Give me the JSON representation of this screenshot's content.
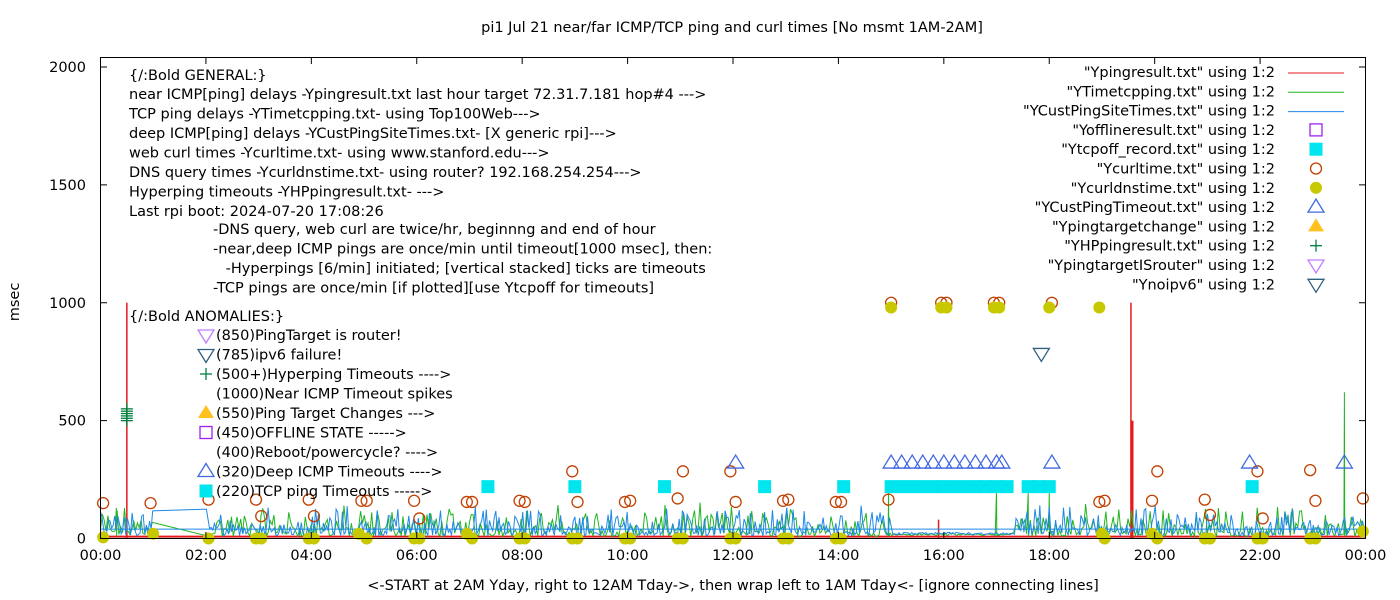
{
  "chart_data": {
    "type": "line",
    "title": "pi1 Jul 21  near/far ICMP/TCP ping and curl times [No msmt 1AM-2AM]",
    "xlabel": "<-START at 2AM Yday, right to 12AM Tday->, then wrap left to 1AM Tday<- [ignore connecting lines]",
    "ylabel": "msec",
    "xlim": [
      0,
      24
    ],
    "ylim": [
      0,
      2000
    ],
    "x_ticks": [
      "00:00",
      "02:00",
      "04:00",
      "06:00",
      "08:00",
      "10:00",
      "12:00",
      "14:00",
      "16:00",
      "18:00",
      "20:00",
      "22:00",
      "00:00"
    ],
    "y_ticks": [
      "0",
      "500",
      "1000",
      "1500",
      "2000"
    ],
    "y_tick_values": [
      0,
      500,
      1000,
      1500,
      2000
    ],
    "grid": false,
    "legend_position": "top-right",
    "legend": [
      {
        "label": "\"Ypingresult.txt\" using 1:2",
        "style": "line",
        "color": "#e41a1c"
      },
      {
        "label": "\"YTimetcpping.txt\" using 1:2",
        "style": "line",
        "color": "#1fb51f"
      },
      {
        "label": "\"YCustPingSiteTimes.txt\" using 1:2",
        "style": "line",
        "color": "#1e88e5"
      },
      {
        "label": "\"Yofflineresult.txt\" using 1:2",
        "style": "open-square",
        "color": "#a020f0"
      },
      {
        "label": "\"Ytcpoff_record.txt\" using 1:2",
        "style": "filled-square",
        "color": "#00e5ee"
      },
      {
        "label": "\"Ycurltime.txt\" using 1:2",
        "style": "open-circle",
        "color": "#c04000"
      },
      {
        "label": "\"Ycurldnstime.txt\" using 1:2",
        "style": "filled-circle",
        "color": "#c8c800"
      },
      {
        "label": "\"YCustPingTimeout.txt\" using 1:2",
        "style": "open-triangle-up",
        "color": "#4169e1"
      },
      {
        "label": "\"Ypingtargetchange\" using 1:2",
        "style": "filled-triangle-up",
        "color": "#ffc020"
      },
      {
        "label": "\"YHPpingresult.txt\" using 1:2",
        "style": "plus",
        "color": "#008040"
      },
      {
        "label": "\"YpingtargetISrouter\" using 1:2",
        "style": "open-triangle-down",
        "color": "#c080ff"
      },
      {
        "label": "\"Ynoipv6\" using 1:2",
        "style": "open-triangle-down",
        "color": "#306080"
      }
    ],
    "annotations": {
      "general_header": "{/:Bold GENERAL:}",
      "general_lines": [
        "near ICMP[ping] delays -Ypingresult.txt last hour target 72.31.7.181 hop#4 --->",
        "TCP ping delays -YTimetcpping.txt- using Top100Web--->",
        "deep ICMP[ping] delays -YCustPingSiteTimes.txt- [X generic rpi]--->",
        "web curl times -Ycurltime.txt- using www.stanford.edu--->",
        "DNS query times -Ycurldnstime.txt- using router? 192.168.254.254--->",
        "Hyperping timeouts -YHPpingresult.txt- --->",
        "Last rpi boot: 2024-07-20 17:08:26"
      ],
      "notes": [
        "-DNS query, web curl are twice/hr, beginnng and end of hour",
        "-near,deep ICMP pings are once/min until timeout[1000 msec], then:",
        " -Hyperpings [6/min] initiated; [vertical stacked] ticks are timeouts",
        "-TCP pings are once/min [if plotted][use Ytcpoff for timeouts]"
      ],
      "anomalies_header": "{/:Bold ANOMALIES:}",
      "anomalies": [
        {
          "marker": "open-triangle-down",
          "color": "#c080ff",
          "text": "(850)PingTarget is router!"
        },
        {
          "marker": "open-triangle-down",
          "color": "#306080",
          "text": "(785)ipv6 failure!"
        },
        {
          "marker": "plus",
          "color": "#008040",
          "text": "(500+)Hyperping Timeouts ---->"
        },
        {
          "marker": "none",
          "color": "#000000",
          "text": "(1000)Near ICMP Timeout spikes"
        },
        {
          "marker": "filled-triangle-up",
          "color": "#ffc020",
          "text": "(550)Ping Target Changes --->"
        },
        {
          "marker": "open-square",
          "color": "#a020f0",
          "text": "(450)OFFLINE STATE ----->"
        },
        {
          "marker": "none",
          "color": "#000000",
          "text": "(400)Reboot/powercycle? ---->"
        },
        {
          "marker": "open-triangle-up",
          "color": "#4169e1",
          "text": "(320)Deep ICMP Timeouts ---->"
        },
        {
          "marker": "filled-square",
          "color": "#00e5ee",
          "text": "(220)TCP ping Timeouts ----->"
        }
      ]
    },
    "series": [
      {
        "name": "Ypingresult.txt",
        "type": "line",
        "color": "#e41a1c",
        "spikes": [
          {
            "x": 0.5,
            "y": 1000
          },
          {
            "x": 19.55,
            "y": 1000
          },
          {
            "x": 19.57,
            "y": 500
          },
          {
            "x": 15.9,
            "y": 80
          }
        ],
        "baseline": 10
      },
      {
        "name": "YTimetcpping.txt",
        "type": "line",
        "color": "#1fb51f",
        "spikes": [
          {
            "x": 23.6,
            "y": 620
          },
          {
            "x": 17.0,
            "y": 200
          },
          {
            "x": 17.6,
            "y": 200
          },
          {
            "x": 18.0,
            "y": 200
          },
          {
            "x": 14.95,
            "y": 200
          },
          {
            "x": 0.3,
            "y": 130
          }
        ],
        "baseline": 30
      },
      {
        "name": "YCustPingSiteTimes.txt",
        "type": "line",
        "color": "#1e88e5",
        "baseline": 40
      },
      {
        "name": "Ytcpoff_record.txt",
        "type": "filled-square",
        "color": "#00e5ee",
        "points": [
          [
            7.35,
            220
          ],
          [
            9.0,
            220
          ],
          [
            10.7,
            220
          ],
          [
            12.6,
            220
          ],
          [
            14.1,
            220
          ],
          [
            15.0,
            220
          ],
          [
            15.2,
            220
          ],
          [
            15.4,
            220
          ],
          [
            15.6,
            220
          ],
          [
            15.8,
            220
          ],
          [
            16.0,
            220
          ],
          [
            16.2,
            220
          ],
          [
            16.4,
            220
          ],
          [
            16.6,
            220
          ],
          [
            16.8,
            220
          ],
          [
            17.0,
            220
          ],
          [
            17.2,
            220
          ],
          [
            17.6,
            220
          ],
          [
            17.8,
            220
          ],
          [
            18.0,
            220
          ],
          [
            21.85,
            220
          ]
        ]
      },
      {
        "name": "Ycurltime.txt",
        "type": "open-circle",
        "color": "#c04000",
        "points": [
          [
            0.05,
            150
          ],
          [
            0.95,
            150
          ],
          [
            2.05,
            165
          ],
          [
            2.95,
            165
          ],
          [
            3.05,
            95
          ],
          [
            3.95,
            165
          ],
          [
            4.05,
            95
          ],
          [
            4.95,
            160
          ],
          [
            5.05,
            160
          ],
          [
            5.95,
            160
          ],
          [
            6.05,
            85
          ],
          [
            6.95,
            155
          ],
          [
            7.05,
            155
          ],
          [
            7.95,
            160
          ],
          [
            8.05,
            155
          ],
          [
            8.95,
            285
          ],
          [
            9.05,
            155
          ],
          [
            9.95,
            155
          ],
          [
            10.05,
            160
          ],
          [
            10.95,
            170
          ],
          [
            11.05,
            285
          ],
          [
            11.95,
            285
          ],
          [
            12.05,
            155
          ],
          [
            12.95,
            160
          ],
          [
            13.05,
            165
          ],
          [
            13.95,
            155
          ],
          [
            14.05,
            155
          ],
          [
            14.95,
            165
          ],
          [
            15.0,
            1000
          ],
          [
            15.95,
            1000
          ],
          [
            16.05,
            1000
          ],
          [
            16.95,
            1000
          ],
          [
            17.05,
            1000
          ],
          [
            18.05,
            1000
          ],
          [
            18.95,
            155
          ],
          [
            19.05,
            160
          ],
          [
            19.95,
            160
          ],
          [
            20.05,
            285
          ],
          [
            20.95,
            165
          ],
          [
            21.05,
            100
          ],
          [
            21.95,
            285
          ],
          [
            22.05,
            85
          ],
          [
            22.95,
            290
          ],
          [
            23.05,
            160
          ],
          [
            23.95,
            170
          ]
        ]
      },
      {
        "name": "Ycurldnstime.txt",
        "type": "filled-circle",
        "color": "#c8c800",
        "points": [
          [
            0.05,
            5
          ],
          [
            1.0,
            20
          ],
          [
            2.05,
            0
          ],
          [
            2.95,
            0
          ],
          [
            3.05,
            0
          ],
          [
            3.95,
            0
          ],
          [
            4.05,
            0
          ],
          [
            4.9,
            20
          ],
          [
            5.05,
            0
          ],
          [
            5.95,
            0
          ],
          [
            6.05,
            0
          ],
          [
            6.95,
            20
          ],
          [
            7.05,
            0
          ],
          [
            7.95,
            0
          ],
          [
            8.05,
            0
          ],
          [
            8.95,
            0
          ],
          [
            9.05,
            0
          ],
          [
            9.95,
            0
          ],
          [
            10.05,
            0
          ],
          [
            10.95,
            0
          ],
          [
            11.05,
            0
          ],
          [
            11.95,
            0
          ],
          [
            12.05,
            0
          ],
          [
            12.95,
            0
          ],
          [
            13.05,
            0
          ],
          [
            13.95,
            0
          ],
          [
            14.05,
            0
          ],
          [
            15.0,
            980
          ],
          [
            15.95,
            980
          ],
          [
            16.05,
            980
          ],
          [
            16.95,
            980
          ],
          [
            17.05,
            980
          ],
          [
            18.0,
            980
          ],
          [
            18.95,
            980
          ],
          [
            19.0,
            20
          ],
          [
            19.05,
            0
          ],
          [
            19.95,
            20
          ],
          [
            20.05,
            0
          ],
          [
            20.95,
            0
          ],
          [
            21.05,
            0
          ],
          [
            21.95,
            0
          ],
          [
            22.05,
            0
          ],
          [
            22.95,
            0
          ],
          [
            23.05,
            0
          ],
          [
            23.95,
            30
          ]
        ]
      },
      {
        "name": "YCustPingTimeout.txt",
        "type": "open-triangle-up",
        "color": "#4169e1",
        "points": [
          [
            12.05,
            320
          ],
          [
            15.0,
            320
          ],
          [
            15.2,
            320
          ],
          [
            15.4,
            320
          ],
          [
            15.6,
            320
          ],
          [
            15.8,
            320
          ],
          [
            16.0,
            320
          ],
          [
            16.2,
            320
          ],
          [
            16.4,
            320
          ],
          [
            16.6,
            320
          ],
          [
            16.8,
            320
          ],
          [
            17.0,
            320
          ],
          [
            17.1,
            320
          ],
          [
            18.05,
            320
          ],
          [
            21.8,
            320
          ],
          [
            23.6,
            320
          ]
        ]
      },
      {
        "name": "YHPpingresult.txt",
        "type": "plus",
        "color": "#008040",
        "points": [
          [
            0.5,
            500
          ],
          [
            0.5,
            510
          ],
          [
            0.5,
            520
          ],
          [
            0.5,
            530
          ],
          [
            0.5,
            540
          ],
          [
            0.5,
            550
          ]
        ]
      },
      {
        "name": "Ynoipv6",
        "type": "open-triangle-down",
        "color": "#306080",
        "points": [
          [
            17.85,
            785
          ]
        ]
      }
    ]
  }
}
